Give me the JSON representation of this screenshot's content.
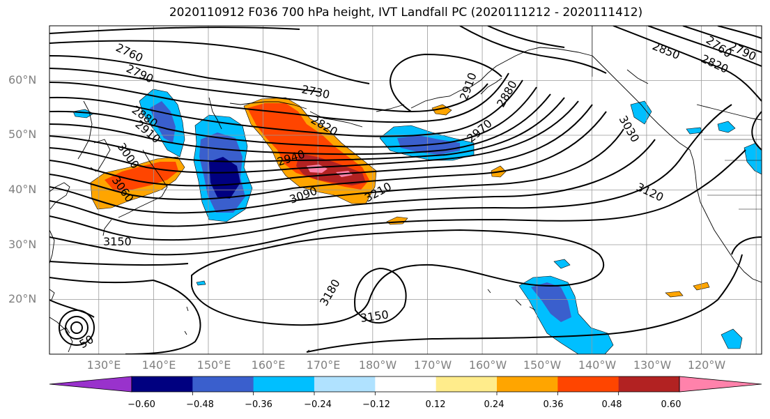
{
  "title": "2020110912 F036 700 hPa height, IVT Landfall PC (2020111212 - 2020111412)",
  "map": {
    "projection": "plate-carree",
    "lon_range": [
      121,
      251
    ],
    "lat_range": [
      10,
      70
    ],
    "lat_ticks": [
      "20°N",
      "30°N",
      "40°N",
      "50°N",
      "60°N"
    ],
    "lon_ticks": [
      "130°E",
      "140°E",
      "150°E",
      "160°E",
      "170°E",
      "180°W",
      "170°W",
      "160°W",
      "150°W",
      "140°W",
      "130°W",
      "120°W"
    ],
    "gridlines": true,
    "coastlines": true
  },
  "height_contours": {
    "variable": "700 hPa height",
    "labels": [
      "2760",
      "2790",
      "2880",
      "2910",
      "3000",
      "3060",
      "3150",
      "2730",
      "2820",
      "2940",
      "3090",
      "3210",
      "2970",
      "2880",
      "2910",
      "3030",
      "2850",
      "2820",
      "2790",
      "2760",
      "3120",
      "3180",
      "3150",
      "50"
    ],
    "line_color": "#000000"
  },
  "ivt_pc": {
    "variable": "IVT Landfall PC",
    "period": "2020111212 - 2020111412",
    "colorbar": {
      "ticks": [
        "−0.60",
        "−0.48",
        "−0.36",
        "−0.24",
        "−0.12",
        "0.12",
        "0.24",
        "0.36",
        "0.48",
        "0.60"
      ],
      "colors": [
        "#9932cc",
        "#000080",
        "#3a5fcd",
        "#00bfff",
        "#b0e2ff",
        "#ffffff",
        "#ffec8b",
        "#ffa500",
        "#ff4500",
        "#b22222",
        "#ff82ab"
      ],
      "extend": "both"
    }
  }
}
